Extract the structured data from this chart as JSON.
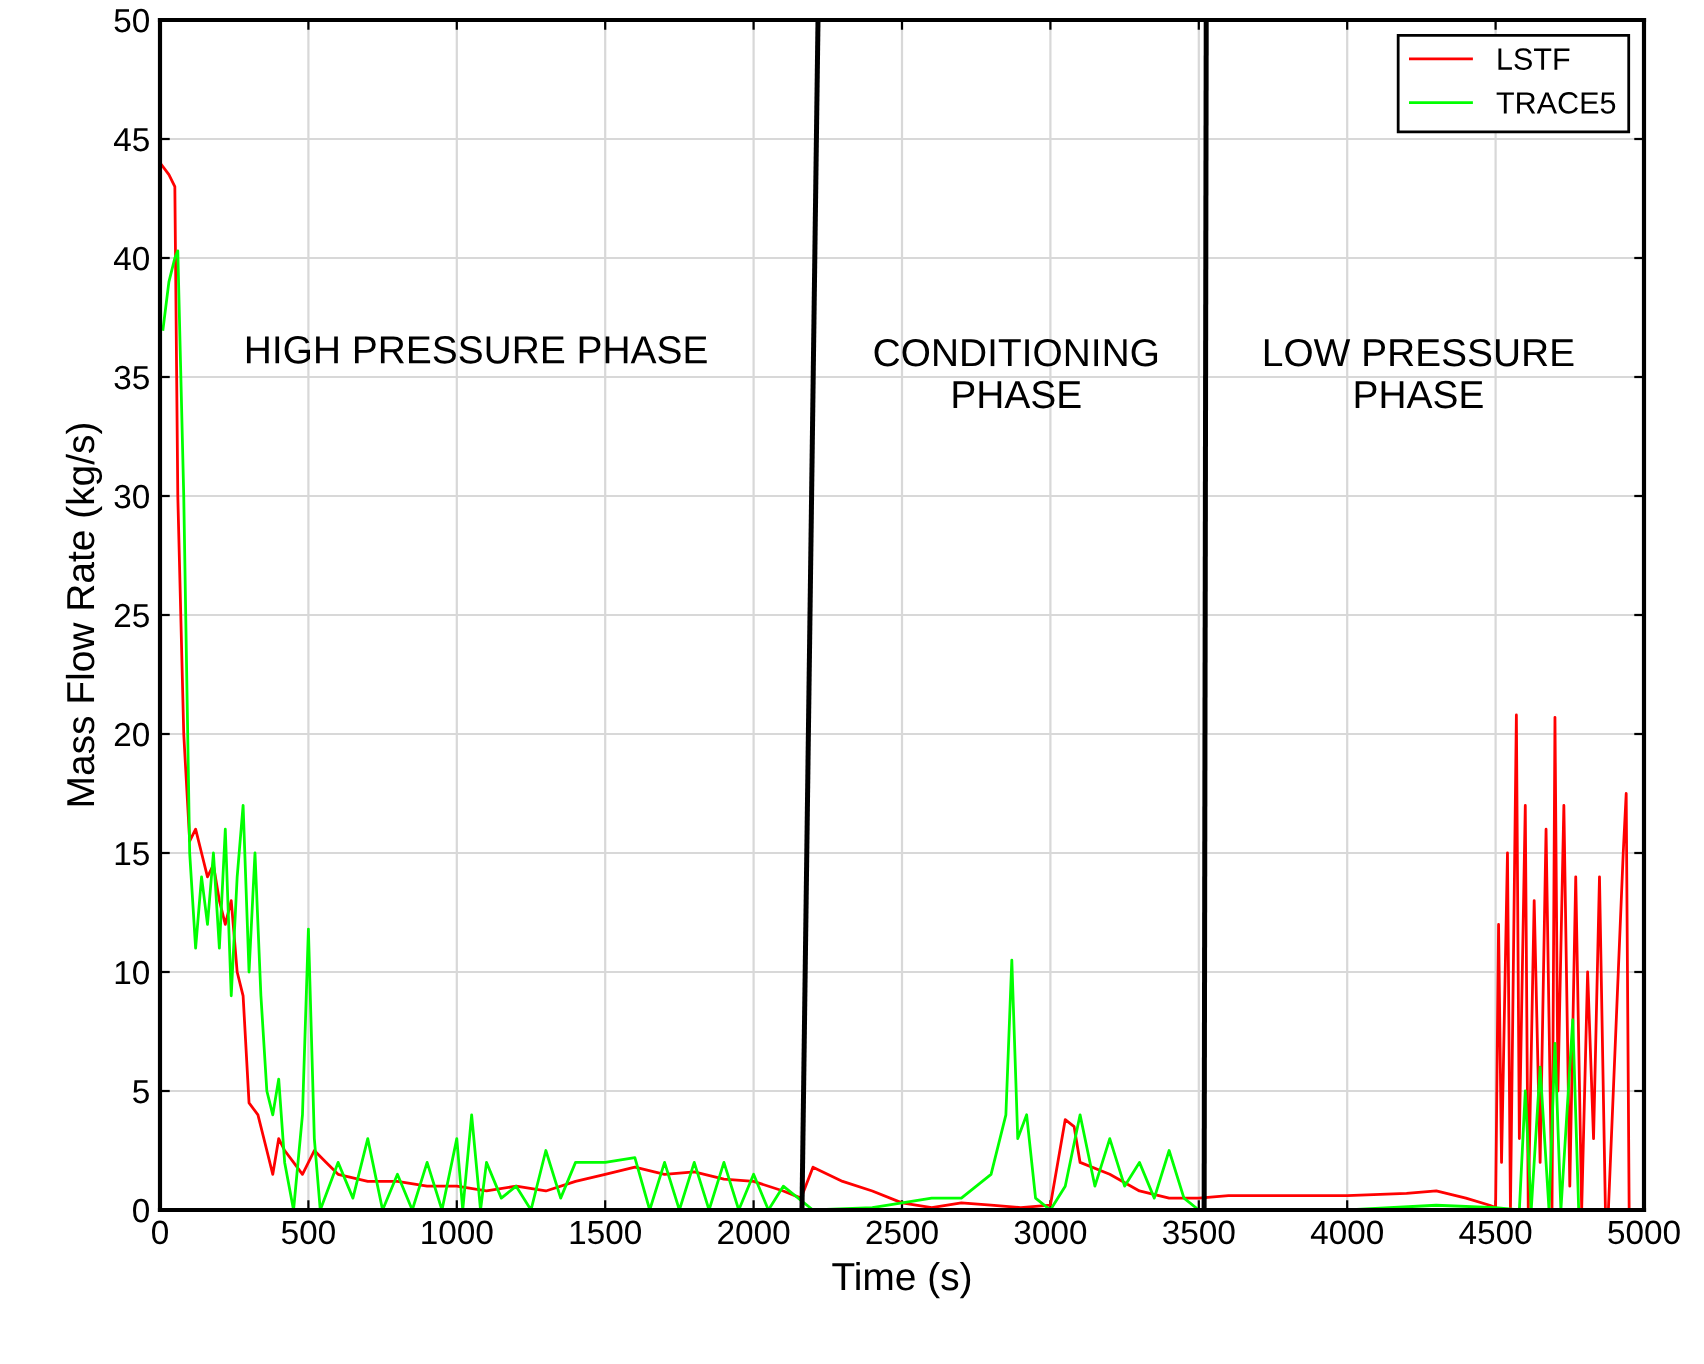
{
  "chart_data": {
    "type": "line",
    "xlabel": "Time (s)",
    "ylabel": "Mass Flow Rate (kg/s)",
    "xlim": [
      0,
      5000
    ],
    "ylim": [
      0,
      50
    ],
    "xticks": [
      0,
      500,
      1000,
      1500,
      2000,
      2500,
      3000,
      3500,
      4000,
      4500,
      5000
    ],
    "yticks": [
      0,
      5,
      10,
      15,
      20,
      25,
      30,
      35,
      40,
      45,
      50
    ],
    "grid": true,
    "legend": "top right",
    "annotations": [
      "HIGH PRESSURE PHASE",
      "CONDITIONING\nPHASE",
      "LOW PRESSURE\nPHASE"
    ],
    "series": [
      {
        "name": "LSTF",
        "color": "#ff0000",
        "x": [
          0,
          30,
          50,
          60,
          80,
          100,
          120,
          140,
          160,
          180,
          200,
          220,
          240,
          260,
          280,
          300,
          330,
          360,
          380,
          400,
          420,
          450,
          480,
          520,
          560,
          600,
          700,
          800,
          900,
          1000,
          1100,
          1200,
          1300,
          1400,
          1500,
          1600,
          1700,
          1800,
          1900,
          2000,
          2100,
          2160,
          2200,
          2300,
          2400,
          2500,
          2600,
          2700,
          2800,
          2900,
          3000,
          3050,
          3080,
          3100,
          3200,
          3300,
          3400,
          3500,
          3600,
          3800,
          4000,
          4200,
          4300,
          4400,
          4480,
          4500,
          4510,
          4520,
          4540,
          4550,
          4570,
          4580,
          4600,
          4610,
          4630,
          4650,
          4670,
          4690,
          4700,
          4710,
          4730,
          4750,
          4770,
          4790,
          4810,
          4830,
          4850,
          4870,
          4880,
          4930,
          4940,
          4950
        ],
        "values": [
          44,
          43.5,
          43,
          30,
          20,
          15.5,
          16,
          15,
          14,
          14.5,
          13,
          12,
          13,
          10,
          9,
          4.5,
          4,
          2.5,
          1.5,
          3,
          2.5,
          2,
          1.5,
          2.5,
          2,
          1.5,
          1.2,
          1.2,
          1,
          1,
          0.8,
          1,
          0.8,
          1.2,
          1.5,
          1.8,
          1.5,
          1.6,
          1.3,
          1.2,
          0.8,
          0.5,
          1.8,
          1.2,
          0.8,
          0.3,
          0.1,
          0.3,
          0.2,
          0.1,
          0.2,
          3.8,
          3.5,
          2,
          1.5,
          0.8,
          0.5,
          0.5,
          0.6,
          0.6,
          0.6,
          0.7,
          0.8,
          0.5,
          0.2,
          0.1,
          12,
          2,
          15,
          0,
          20.8,
          3,
          17,
          0,
          13,
          2,
          16,
          0,
          20.7,
          5,
          17,
          1,
          14,
          0,
          10,
          3,
          14,
          0,
          0,
          15,
          17.5,
          0
        ]
      },
      {
        "name": "TRACE5",
        "color": "#00ff00",
        "x": [
          10,
          30,
          50,
          60,
          80,
          100,
          120,
          140,
          160,
          180,
          200,
          220,
          240,
          260,
          280,
          300,
          320,
          340,
          360,
          380,
          400,
          420,
          450,
          480,
          500,
          520,
          540,
          600,
          650,
          700,
          750,
          800,
          850,
          900,
          950,
          1000,
          1020,
          1050,
          1080,
          1100,
          1150,
          1200,
          1250,
          1300,
          1350,
          1400,
          1500,
          1600,
          1650,
          1700,
          1750,
          1800,
          1850,
          1900,
          1950,
          2000,
          2050,
          2100,
          2200,
          2400,
          2600,
          2700,
          2800,
          2850,
          2870,
          2890,
          2920,
          2950,
          3000,
          3050,
          3100,
          3150,
          3200,
          3250,
          3300,
          3350,
          3400,
          3450,
          3500,
          3600,
          4000,
          4300,
          4500,
          4580,
          4600,
          4620,
          4650,
          4680,
          4700,
          4720,
          4760,
          4780,
          4800
        ],
        "values": [
          37,
          39,
          40,
          40.3,
          30,
          15,
          11,
          14,
          12,
          15,
          11,
          16,
          9,
          14,
          17,
          10,
          15,
          9,
          5,
          4,
          5.5,
          2,
          0,
          4,
          11.8,
          3,
          0,
          2,
          0.5,
          3,
          0,
          1.5,
          0,
          2,
          0,
          3,
          0,
          4,
          0,
          2,
          0.5,
          1,
          0,
          2.5,
          0.5,
          2,
          2,
          2.2,
          0,
          2,
          0,
          2,
          0,
          2,
          0,
          1.5,
          0,
          1,
          0,
          0.1,
          0.5,
          0.5,
          1.5,
          4,
          10.5,
          3,
          4,
          0.5,
          0,
          1,
          4,
          1,
          3,
          1,
          2,
          0.5,
          2.5,
          0.5,
          0,
          0,
          0,
          0.2,
          0.1,
          0,
          5,
          0,
          6,
          0,
          7,
          0,
          8,
          0,
          0
        ]
      },
      {
        "color": "#000000",
        "x": [
          2163,
          2217
        ],
        "values": [
          0,
          50
        ]
      },
      {
        "color": "#000000",
        "x": [
          3518,
          3525
        ],
        "values": [
          0,
          50
        ]
      }
    ]
  }
}
